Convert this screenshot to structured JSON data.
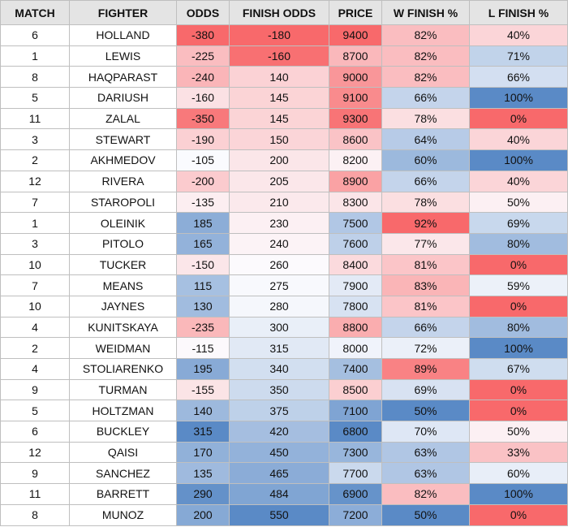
{
  "table": {
    "columns": [
      "MATCH",
      "FIGHTER",
      "ODDS",
      "FINISH ODDS",
      "PRICE",
      "W FINISH %",
      "L FINISH %"
    ],
    "rows": [
      [
        6,
        "HOLLAND",
        -380,
        -180,
        9400,
        "82%",
        "40%"
      ],
      [
        1,
        "LEWIS",
        -225,
        -160,
        8700,
        "82%",
        "71%"
      ],
      [
        8,
        "HAQPARAST",
        -240,
        140,
        9000,
        "82%",
        "66%"
      ],
      [
        5,
        "DARIUSH",
        -160,
        145,
        9100,
        "66%",
        "100%"
      ],
      [
        11,
        "ZALAL",
        -350,
        145,
        9300,
        "78%",
        "0%"
      ],
      [
        3,
        "STEWART",
        -190,
        150,
        8600,
        "64%",
        "40%"
      ],
      [
        2,
        "AKHMEDOV",
        -105,
        200,
        8200,
        "60%",
        "100%"
      ],
      [
        12,
        "RIVERA",
        -200,
        205,
        8900,
        "66%",
        "40%"
      ],
      [
        7,
        "STAROPOLI",
        -135,
        210,
        8300,
        "78%",
        "50%"
      ],
      [
        1,
        "OLEINIK",
        185,
        230,
        7500,
        "92%",
        "69%"
      ],
      [
        3,
        "PITOLO",
        165,
        240,
        7600,
        "77%",
        "80%"
      ],
      [
        10,
        "TUCKER",
        -150,
        260,
        8400,
        "81%",
        "0%"
      ],
      [
        7,
        "MEANS",
        115,
        275,
        7900,
        "83%",
        "59%"
      ],
      [
        10,
        "JAYNES",
        130,
        280,
        7800,
        "81%",
        "0%"
      ],
      [
        4,
        "KUNITSKAYA",
        -235,
        300,
        8800,
        "66%",
        "80%"
      ],
      [
        2,
        "WEIDMAN",
        -115,
        315,
        8000,
        "72%",
        "100%"
      ],
      [
        4,
        "STOLIARENKO",
        195,
        340,
        7400,
        "89%",
        "67%"
      ],
      [
        9,
        "TURMAN",
        -155,
        350,
        8500,
        "69%",
        "0%"
      ],
      [
        5,
        "HOLTZMAN",
        140,
        375,
        7100,
        "50%",
        "0%"
      ],
      [
        6,
        "BUCKLEY",
        315,
        420,
        6800,
        "70%",
        "50%"
      ],
      [
        12,
        "QAISI",
        170,
        450,
        7300,
        "63%",
        "33%"
      ],
      [
        9,
        "SANCHEZ",
        135,
        465,
        7700,
        "63%",
        "60%"
      ],
      [
        11,
        "BARRETT",
        290,
        484,
        6900,
        "82%",
        "100%"
      ],
      [
        8,
        "MUNOZ",
        200,
        550,
        7200,
        "50%",
        "0%"
      ]
    ],
    "heatmap": {
      "red": "#f8696b",
      "white": "#fcfcff",
      "blue": "#5a8ac6",
      "red_low_columns": [
        2,
        3,
        6
      ],
      "red_high_columns": [
        4,
        5
      ]
    }
  }
}
